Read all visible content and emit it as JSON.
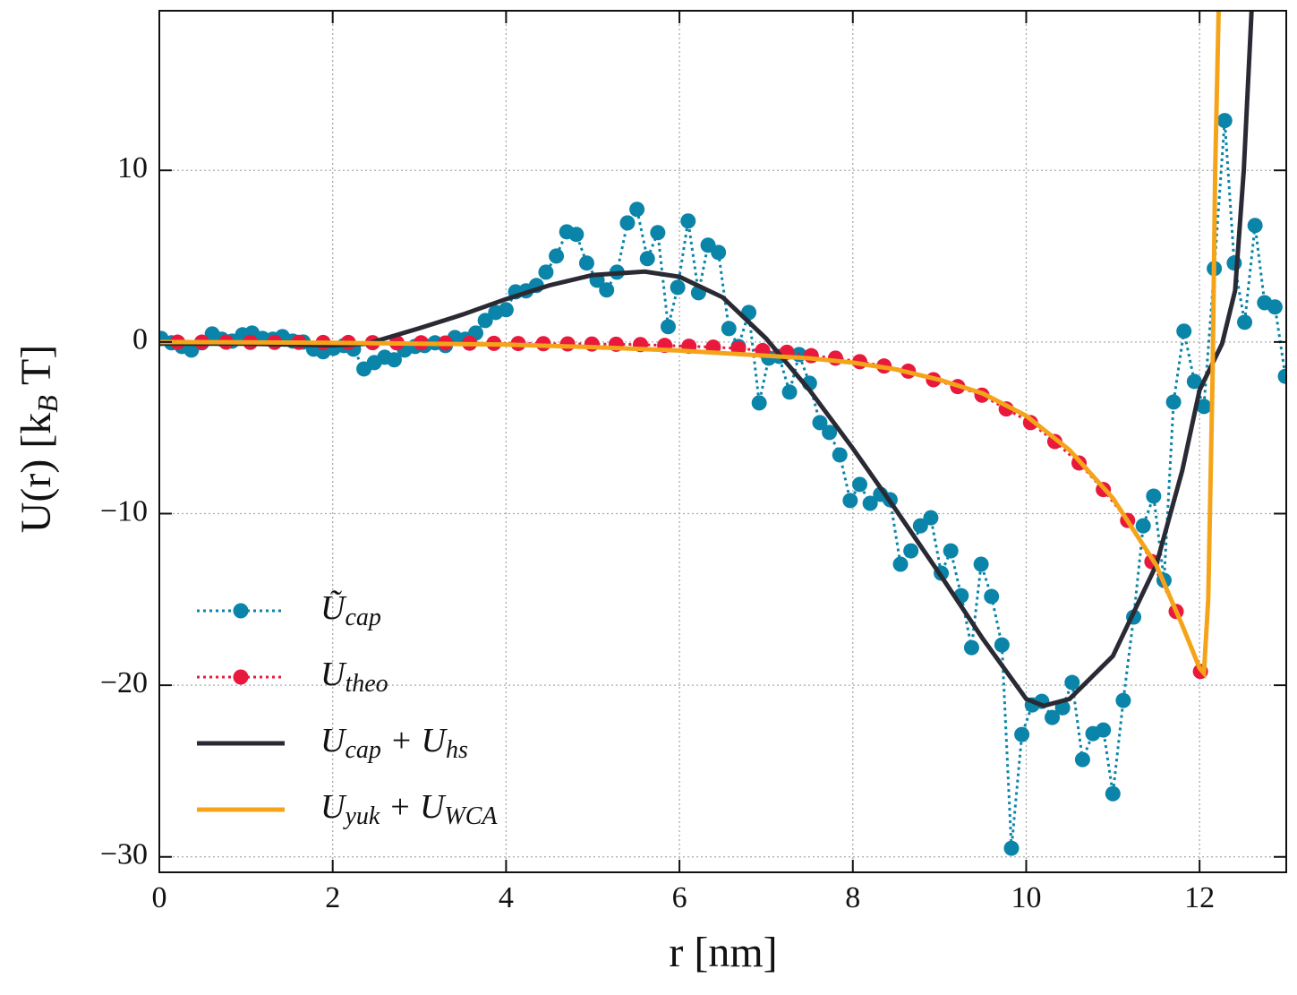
{
  "chart_data": {
    "type": "line",
    "xlabel": "r [nm]",
    "ylabel": [
      "U(r) [k",
      "B",
      " T]"
    ],
    "xlim": [
      0,
      13
    ],
    "ylim": [
      -30.9,
      19.3
    ],
    "xticks": [
      0,
      2,
      4,
      6,
      8,
      10,
      12
    ],
    "yticks": [
      {
        "value": -30,
        "label": "−30"
      },
      {
        "value": -20,
        "label": "−20"
      },
      {
        "value": -10,
        "label": "−10"
      },
      0,
      10
    ],
    "grid": true,
    "legend": "lower left",
    "series": [
      {
        "name": [
          "Ũ",
          "cap"
        ],
        "color": "#0a84a8",
        "linestyle": "dotted",
        "marker": true,
        "x": [
          0.02,
          0.14,
          0.26,
          0.37,
          0.49,
          0.61,
          0.72,
          0.84,
          0.96,
          1.07,
          1.19,
          1.31,
          1.42,
          1.54,
          1.66,
          1.78,
          1.89,
          2.01,
          2.13,
          2.24,
          2.36,
          2.48,
          2.6,
          2.71,
          2.83,
          2.95,
          3.06,
          3.18,
          3.3,
          3.41,
          3.53,
          3.65,
          3.76,
          3.88,
          4.0,
          4.11,
          4.23,
          4.35,
          4.46,
          4.58,
          4.7,
          4.81,
          4.93,
          5.05,
          5.16,
          5.28,
          5.4,
          5.51,
          5.63,
          5.75,
          5.87,
          5.98,
          6.1,
          6.22,
          6.33,
          6.45,
          6.57,
          6.68,
          6.8,
          6.92,
          7.03,
          7.15,
          7.27,
          7.38,
          7.5,
          7.62,
          7.73,
          7.85,
          7.97,
          8.08,
          8.2,
          8.32,
          8.43,
          8.55,
          8.67,
          8.78,
          8.9,
          9.02,
          9.13,
          9.25,
          9.37,
          9.48,
          9.6,
          9.72,
          9.83,
          9.95,
          10.07,
          10.18,
          10.3,
          10.42,
          10.53,
          10.65,
          10.77,
          10.89,
          11.0,
          11.12,
          11.24,
          11.35,
          11.47,
          11.59,
          11.7,
          11.82,
          11.94,
          12.05,
          12.17,
          12.29,
          12.4,
          12.52,
          12.64,
          12.75,
          12.87,
          12.99
        ],
        "values": [
          0.21,
          -0.05,
          -0.26,
          -0.47,
          -0.05,
          0.47,
          0.16,
          0.05,
          0.42,
          0.52,
          0.21,
          0.16,
          0.31,
          0.05,
          0,
          -0.42,
          -0.57,
          -0.37,
          -0.21,
          -0.42,
          -1.57,
          -1.2,
          -0.89,
          -1.04,
          -0.47,
          -0.26,
          -0.21,
          -0.05,
          -0.21,
          0.26,
          0.16,
          0.52,
          1.25,
          1.72,
          1.88,
          2.92,
          2.98,
          3.29,
          4.07,
          5.01,
          6.42,
          6.27,
          4.6,
          3.6,
          3.03,
          4.07,
          6.94,
          7.73,
          4.86,
          6.37,
          0.89,
          3.18,
          7.05,
          2.87,
          5.64,
          5.22,
          0.78,
          -0.26,
          1.72,
          -3.55,
          -0.94,
          -0.84,
          -2.92,
          -0.73,
          -2.4,
          -4.7,
          -5.27,
          -6.58,
          -9.24,
          -8.3,
          -9.4,
          -8.88,
          -9.19,
          -12.95,
          -12.17,
          -10.71,
          -10.24,
          -13.47,
          -12.17,
          -14.78,
          -17.81,
          -12.95,
          -14.83,
          -17.65,
          -29.5,
          -22.87,
          -21.15,
          -20.94,
          -21.88,
          -21.31,
          -19.84,
          -24.33,
          -22.82,
          -22.61,
          -26.32,
          -20.89,
          -16.03,
          -10.71,
          -8.98,
          -13.89,
          -3.5,
          0.63,
          -2.3,
          -3.76,
          4.28,
          12.9,
          4.6,
          1.15,
          6.79,
          2.29,
          2.04,
          -2.0
        ]
      },
      {
        "name": [
          "U",
          "theo"
        ],
        "color": "#e8193c",
        "linestyle": "dotted",
        "marker": true,
        "x": [
          0.21,
          0.49,
          0.77,
          1.05,
          1.33,
          1.61,
          1.89,
          2.18,
          2.46,
          2.74,
          3.02,
          3.3,
          3.58,
          3.86,
          4.14,
          4.43,
          4.71,
          4.99,
          5.27,
          5.55,
          5.83,
          6.11,
          6.39,
          6.68,
          6.96,
          7.24,
          7.52,
          7.8,
          8.08,
          8.36,
          8.64,
          8.93,
          9.21,
          9.49,
          9.77,
          10.05,
          10.33,
          10.61,
          10.89,
          11.17,
          11.45,
          11.73,
          12.01
        ],
        "values": [
          -0.01,
          -0.01,
          -0.01,
          -0.02,
          -0.02,
          -0.02,
          -0.03,
          -0.03,
          -0.04,
          -0.05,
          -0.05,
          -0.06,
          -0.07,
          -0.08,
          -0.09,
          -0.1,
          -0.11,
          -0.12,
          -0.13,
          -0.15,
          -0.2,
          -0.25,
          -0.3,
          -0.38,
          -0.5,
          -0.6,
          -0.8,
          -0.94,
          -1.15,
          -1.4,
          -1.7,
          -2.2,
          -2.6,
          -3.1,
          -3.9,
          -4.7,
          -5.8,
          -7.05,
          -8.6,
          -10.4,
          -12.8,
          -15.7,
          -19.2
        ]
      },
      {
        "name": [
          "U",
          "cap",
          " + U",
          "hs"
        ],
        "color": "#2a2a35",
        "linestyle": "solid",
        "marker": false,
        "x": [
          0,
          0.5,
          1,
          1.5,
          2,
          2.4,
          3,
          3.5,
          4,
          4.5,
          5,
          5.6,
          6,
          6.5,
          7,
          7.5,
          8,
          8.5,
          9,
          9.5,
          10,
          10.2,
          10.5,
          11,
          11.5,
          11.8,
          12,
          12.26,
          12.41,
          12.51,
          12.6
        ],
        "values": [
          -0.1,
          -0.1,
          -0.1,
          -0.15,
          -0.2,
          -0.1,
          0.8,
          1.6,
          2.5,
          3.3,
          3.9,
          4.1,
          3.8,
          2.6,
          0.2,
          -2.8,
          -6.2,
          -9.8,
          -13.5,
          -17.3,
          -20.8,
          -21.2,
          -20.8,
          -18.3,
          -13,
          -7.5,
          -2.8,
          -0.1,
          3,
          10,
          19.3
        ]
      },
      {
        "name": [
          "U",
          "yuk",
          " + U",
          "WCA"
        ],
        "color": "#f5a41a",
        "linestyle": "solid",
        "marker": false,
        "x": [
          0,
          1,
          2,
          3,
          4,
          5,
          6,
          7,
          7.5,
          8,
          8.5,
          9,
          9.5,
          10,
          10.5,
          11,
          11.5,
          11.8,
          12.0,
          12.05,
          12.1,
          12.15,
          12.18,
          12.22
        ],
        "values": [
          0,
          -0.02,
          -0.05,
          -0.1,
          -0.15,
          -0.3,
          -0.5,
          -0.8,
          -0.95,
          -1.2,
          -1.6,
          -2.2,
          -3.0,
          -4.3,
          -6.3,
          -9.1,
          -13.0,
          -16.5,
          -19.0,
          -19.3,
          -15,
          -2,
          10,
          19.3
        ]
      }
    ]
  }
}
